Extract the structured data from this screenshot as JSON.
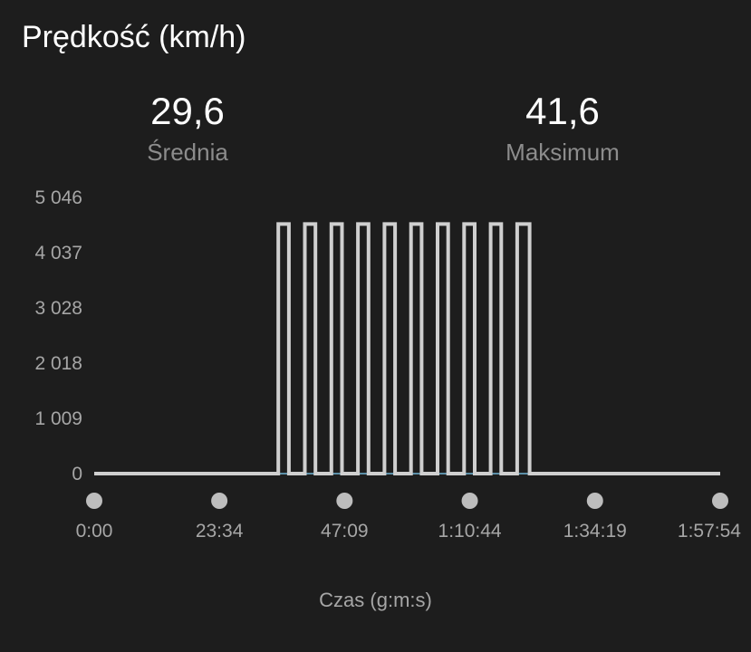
{
  "header": {
    "title": "Prędkość (km/h)"
  },
  "stats": {
    "average": {
      "value": "29,6",
      "label": "Średnia"
    },
    "maximum": {
      "value": "41,6",
      "label": "Maksimum"
    }
  },
  "colors": {
    "background": "#1d1d1d",
    "series": "#cfcfcf",
    "baseline": "#5b8fa8",
    "marker": "#bdbdbd"
  },
  "chart_data": {
    "type": "line",
    "xlabel": "Czas (g:m:s)",
    "ylabel": "",
    "y_ticks": [
      "5 046",
      "4 037",
      "3 028",
      "2 018",
      "1 009",
      "0"
    ],
    "y_tick_values": [
      5046,
      4037,
      3028,
      2018,
      1009,
      0
    ],
    "ylim": [
      0,
      5046
    ],
    "x_ticks": [
      "0:00",
      "23:34",
      "47:09",
      "1:10:44",
      "1:34:19",
      "1:57:54"
    ],
    "x_tick_seconds": [
      0,
      1414,
      2829,
      4244,
      5659,
      7074
    ],
    "xlim": [
      0,
      7074
    ],
    "series": [
      {
        "values": [
          [
            0,
            0
          ],
          [
            2080,
            0
          ],
          [
            2080,
            4560
          ],
          [
            2200,
            4560
          ],
          [
            2200,
            0
          ],
          [
            2380,
            0
          ],
          [
            2380,
            4560
          ],
          [
            2500,
            4560
          ],
          [
            2500,
            0
          ],
          [
            2680,
            0
          ],
          [
            2680,
            4560
          ],
          [
            2800,
            4560
          ],
          [
            2800,
            0
          ],
          [
            2980,
            0
          ],
          [
            2980,
            4560
          ],
          [
            3100,
            4560
          ],
          [
            3100,
            0
          ],
          [
            3280,
            0
          ],
          [
            3280,
            4560
          ],
          [
            3400,
            4560
          ],
          [
            3400,
            0
          ],
          [
            3580,
            0
          ],
          [
            3580,
            4560
          ],
          [
            3700,
            4560
          ],
          [
            3700,
            0
          ],
          [
            3880,
            0
          ],
          [
            3880,
            4560
          ],
          [
            4000,
            4560
          ],
          [
            4000,
            0
          ],
          [
            4180,
            0
          ],
          [
            4180,
            4560
          ],
          [
            4300,
            4560
          ],
          [
            4300,
            0
          ],
          [
            4480,
            0
          ],
          [
            4480,
            4560
          ],
          [
            4600,
            4560
          ],
          [
            4600,
            0
          ],
          [
            4780,
            0
          ],
          [
            4780,
            4560
          ],
          [
            4920,
            4560
          ],
          [
            4920,
            0
          ],
          [
            7074,
            0
          ]
        ]
      }
    ]
  }
}
